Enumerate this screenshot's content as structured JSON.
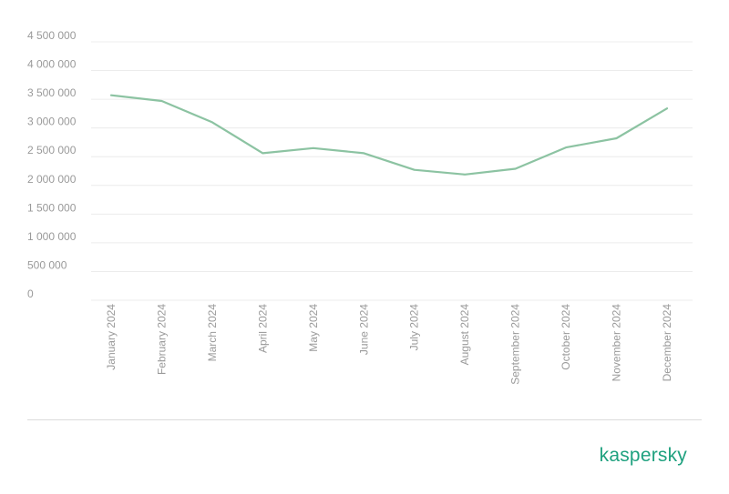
{
  "colors": {
    "series": "#8cc3a2",
    "brand": "#1fa17f"
  },
  "brand": {
    "logo_text": "kaspersky"
  },
  "chart_data": {
    "type": "line",
    "title": "",
    "xlabel": "",
    "ylabel": "",
    "ylim": [
      0,
      4500000
    ],
    "yticks": [
      0,
      500000,
      1000000,
      1500000,
      2000000,
      2500000,
      3000000,
      3500000,
      4000000,
      4500000
    ],
    "ytick_labels": [
      "0",
      "500 000",
      "1 000 000",
      "1 500 000",
      "2 000 000",
      "2 500 000",
      "3 000 000",
      "3 500 000",
      "4 000 000",
      "4 500 000"
    ],
    "categories": [
      "January 2024",
      "February 2024",
      "March 2024",
      "April 2024",
      "May 2024",
      "June 2024",
      "July 2024",
      "August 2024",
      "September 2024",
      "October 2024",
      "November 2024",
      "December 2024"
    ],
    "series": [
      {
        "values": [
          3570000,
          3470000,
          3100000,
          2560000,
          2650000,
          2560000,
          2270000,
          2190000,
          2290000,
          2660000,
          2820000,
          3340000
        ]
      }
    ],
    "grid": true,
    "legend": "none"
  }
}
